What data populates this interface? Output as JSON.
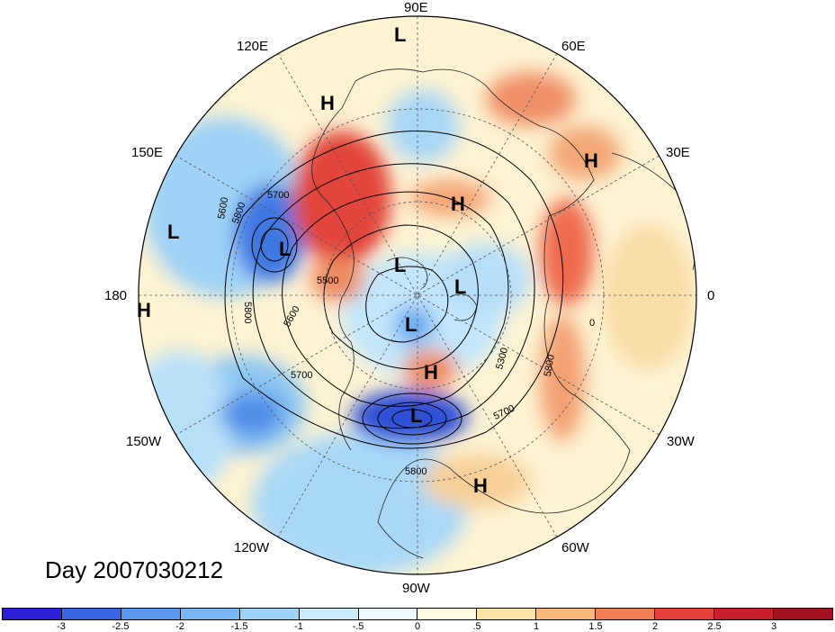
{
  "title": "Day 2007030212",
  "longitude_labels": {
    "deg90e": "90E",
    "deg60e": "60E",
    "deg30e": "30E",
    "deg0": "0",
    "deg30w": "30W",
    "deg60w": "60W",
    "deg90w": "90W",
    "deg120w": "120W",
    "deg150w": "150W",
    "deg180": "180",
    "deg150e": "150E",
    "deg120e": "120E"
  },
  "pressure_centers": [
    {
      "label": "L"
    },
    {
      "label": "H"
    },
    {
      "label": "H"
    },
    {
      "label": "L"
    },
    {
      "label": "H"
    },
    {
      "label": "L"
    },
    {
      "label": "L"
    },
    {
      "label": "L"
    },
    {
      "label": "H"
    },
    {
      "label": "L"
    },
    {
      "label": "H"
    },
    {
      "label": "L"
    },
    {
      "label": "H"
    }
  ],
  "contour_labels": [
    "5700",
    "5800",
    "5500",
    "5600",
    "5800",
    "5700",
    "5300",
    "5800",
    "5700",
    "5800",
    "5600",
    "0"
  ],
  "colorbar": {
    "ticks": [
      "-3",
      "-2.5",
      "-2",
      "-1.5",
      "-1",
      "-.5",
      "0",
      ".5",
      "1",
      "1.5",
      "2",
      "2.5",
      "3"
    ],
    "colors": [
      "#2a1fd6",
      "#3a66e3",
      "#5a97ee",
      "#78b6f4",
      "#9dd3f8",
      "#c8ecfb",
      "#eafaff",
      "#fffbe0",
      "#fbe3a8",
      "#f7b97a",
      "#f07f55",
      "#e6403a",
      "#c91f2b",
      "#a31020"
    ]
  }
}
